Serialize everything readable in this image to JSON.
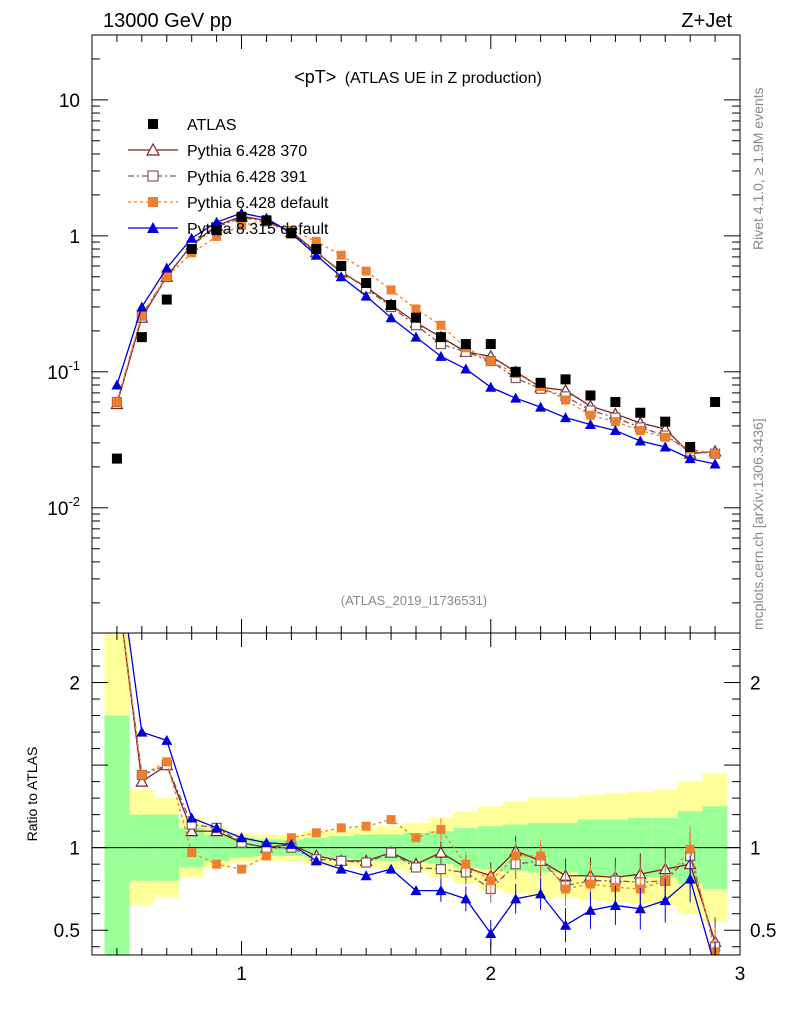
{
  "header": {
    "left": "13000 GeV pp",
    "right": "Z+Jet"
  },
  "side_labels": {
    "rivet": "Rivet 4.1.0, ≥ 1.9M events",
    "mcplots": "mcplots.cern.ch [arXiv:1306.3436]"
  },
  "chart_data": {
    "type": "line",
    "title": "<pT> (ATLAS UE in Z production)",
    "title_main": "<pT>",
    "title_sub": "(ATLAS UE in Z production)",
    "analysis_id": "(ATLAS_2019_I1736531)",
    "xlabel": "",
    "ylabel_ratio": "Ratio to ATLAS",
    "xlim": [
      0.4,
      3.0
    ],
    "ylim_main": [
      0.0012,
      30
    ],
    "ylim_ratio": [
      0.35,
      2.3
    ],
    "x_ticks": [
      "1",
      "2",
      "3"
    ],
    "y_ticks_main": [
      {
        "base": "10",
        "exp": "-2",
        "value": 0.01
      },
      {
        "base": "10",
        "exp": "-1",
        "value": 0.1
      },
      {
        "base": "1",
        "exp": "",
        "value": 1
      },
      {
        "base": "10",
        "exp": "",
        "value": 10
      }
    ],
    "y_ticks_ratio": [
      {
        "label": "0.5",
        "value": 0.5
      },
      {
        "label": "1",
        "value": 1
      },
      {
        "label": "2",
        "value": 2
      }
    ],
    "x": [
      0.5,
      0.6,
      0.7,
      0.8,
      0.9,
      1.0,
      1.1,
      1.2,
      1.3,
      1.4,
      1.5,
      1.6,
      1.7,
      1.8,
      1.9,
      2.0,
      2.1,
      2.2,
      2.3,
      2.4,
      2.5,
      2.6,
      2.7,
      2.8,
      2.9
    ],
    "data": {
      "name": "ATLAS",
      "values": [
        0.023,
        0.18,
        0.34,
        0.8,
        1.1,
        1.38,
        1.3,
        1.05,
        0.8,
        0.6,
        0.45,
        0.31,
        0.25,
        0.18,
        0.16,
        0.16,
        0.1,
        0.083,
        0.088,
        0.067,
        0.06,
        0.05,
        0.043,
        0.028,
        0.06
      ]
    },
    "series": [
      {
        "name": "Pythia 6.428 370",
        "color": "#7f1f1f",
        "marker": "open-triangle",
        "dash": "",
        "values": [
          0.058,
          0.25,
          0.5,
          0.86,
          1.19,
          1.39,
          1.3,
          1.07,
          0.76,
          0.54,
          0.42,
          0.31,
          0.23,
          0.18,
          0.14,
          0.13,
          0.1,
          0.077,
          0.073,
          0.056,
          0.049,
          0.042,
          0.038,
          0.025,
          0.026
        ],
        "ratio": [
          2.6,
          1.4,
          1.5,
          1.1,
          1.1,
          1.03,
          1.0,
          1.02,
          0.95,
          0.92,
          0.92,
          0.97,
          0.9,
          0.97,
          0.88,
          0.83,
          0.98,
          0.92,
          0.83,
          0.83,
          0.82,
          0.84,
          0.87,
          0.9,
          0.43
        ]
      },
      {
        "name": "Pythia 6.428 391",
        "color": "#7f5a5a",
        "marker": "open-square",
        "dash": "6,3,2,3",
        "values": [
          0.06,
          0.26,
          0.51,
          0.85,
          1.16,
          1.36,
          1.28,
          1.04,
          0.75,
          0.55,
          0.41,
          0.3,
          0.22,
          0.16,
          0.14,
          0.12,
          0.09,
          0.075,
          0.066,
          0.052,
          0.046,
          0.039,
          0.034,
          0.026,
          0.025
        ],
        "ratio": [
          2.6,
          1.44,
          1.5,
          1.14,
          1.12,
          1.03,
          1.0,
          1.0,
          0.93,
          0.92,
          0.91,
          0.97,
          0.88,
          0.87,
          0.85,
          0.75,
          0.9,
          0.92,
          0.77,
          0.8,
          0.8,
          0.79,
          0.8,
          0.95,
          0.4
        ]
      },
      {
        "name": "Pythia 6.428 default",
        "color": "#ef7f2f",
        "marker": "filled-square",
        "dash": "3,3",
        "values": [
          0.06,
          0.26,
          0.5,
          0.75,
          0.99,
          1.19,
          1.3,
          1.1,
          0.91,
          0.72,
          0.55,
          0.4,
          0.29,
          0.22,
          0.15,
          0.12,
          0.097,
          0.078,
          0.062,
          0.048,
          0.043,
          0.037,
          0.033,
          0.027,
          0.025
        ],
        "ratio": [
          2.6,
          1.44,
          1.52,
          0.97,
          0.9,
          0.87,
          0.95,
          1.06,
          1.09,
          1.12,
          1.13,
          1.17,
          1.06,
          1.11,
          0.9,
          0.8,
          0.95,
          0.95,
          0.75,
          0.78,
          0.76,
          0.75,
          0.8,
          0.99,
          0.37
        ]
      },
      {
        "name": "Pythia 8.315 default",
        "color": "#0000dd",
        "marker": "filled-triangle",
        "dash": "",
        "values": [
          0.08,
          0.3,
          0.58,
          0.96,
          1.26,
          1.47,
          1.35,
          1.04,
          0.72,
          0.5,
          0.36,
          0.25,
          0.18,
          0.13,
          0.105,
          0.077,
          0.064,
          0.055,
          0.046,
          0.041,
          0.037,
          0.031,
          0.028,
          0.023,
          0.021
        ],
        "ratio": [
          2.8,
          1.7,
          1.65,
          1.18,
          1.12,
          1.06,
          1.03,
          1.02,
          0.92,
          0.87,
          0.83,
          0.87,
          0.74,
          0.74,
          0.69,
          0.48,
          0.69,
          0.72,
          0.53,
          0.62,
          0.65,
          0.63,
          0.68,
          0.81,
          0.28
        ]
      }
    ],
    "ratio_bands": {
      "inner_half_width": [
        0.8,
        0.2,
        0.2,
        0.12,
        0.08,
        0.06,
        0.05,
        0.05,
        0.06,
        0.07,
        0.08,
        0.08,
        0.09,
        0.1,
        0.12,
        0.13,
        0.14,
        0.15,
        0.15,
        0.17,
        0.17,
        0.18,
        0.18,
        0.22,
        0.25
      ],
      "outer_half_width": [
        1.5,
        0.35,
        0.3,
        0.18,
        0.12,
        0.09,
        0.08,
        0.08,
        0.1,
        0.11,
        0.12,
        0.13,
        0.15,
        0.18,
        0.22,
        0.25,
        0.28,
        0.3,
        0.3,
        0.32,
        0.33,
        0.34,
        0.35,
        0.4,
        0.45
      ]
    }
  }
}
